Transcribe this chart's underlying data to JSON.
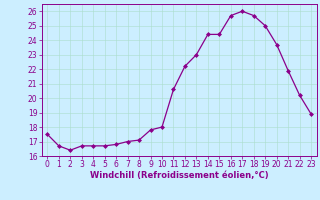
{
  "x": [
    0,
    1,
    2,
    3,
    4,
    5,
    6,
    7,
    8,
    9,
    10,
    11,
    12,
    13,
    14,
    15,
    16,
    17,
    18,
    19,
    20,
    21,
    22,
    23
  ],
  "y": [
    17.5,
    16.7,
    16.4,
    16.7,
    16.7,
    16.7,
    16.8,
    17.0,
    17.1,
    17.8,
    18.0,
    20.6,
    22.2,
    23.0,
    24.4,
    24.4,
    25.7,
    26.0,
    25.7,
    25.0,
    23.7,
    21.9,
    20.2,
    18.9
  ],
  "line_color": "#8B008B",
  "marker": "D",
  "markersize": 2.0,
  "linewidth": 0.9,
  "bg_color": "#cceeff",
  "grid_color": "#aaddcc",
  "xlabel": "Windchill (Refroidissement éolien,°C)",
  "ylabel": "",
  "xlim": [
    -0.5,
    23.5
  ],
  "ylim": [
    16.0,
    26.5
  ],
  "yticks": [
    16,
    17,
    18,
    19,
    20,
    21,
    22,
    23,
    24,
    25,
    26
  ],
  "xticks": [
    0,
    1,
    2,
    3,
    4,
    5,
    6,
    7,
    8,
    9,
    10,
    11,
    12,
    13,
    14,
    15,
    16,
    17,
    18,
    19,
    20,
    21,
    22,
    23
  ],
  "tick_fontsize": 5.5,
  "xlabel_fontsize": 6.0,
  "tick_color": "#8B008B",
  "label_color": "#8B008B"
}
